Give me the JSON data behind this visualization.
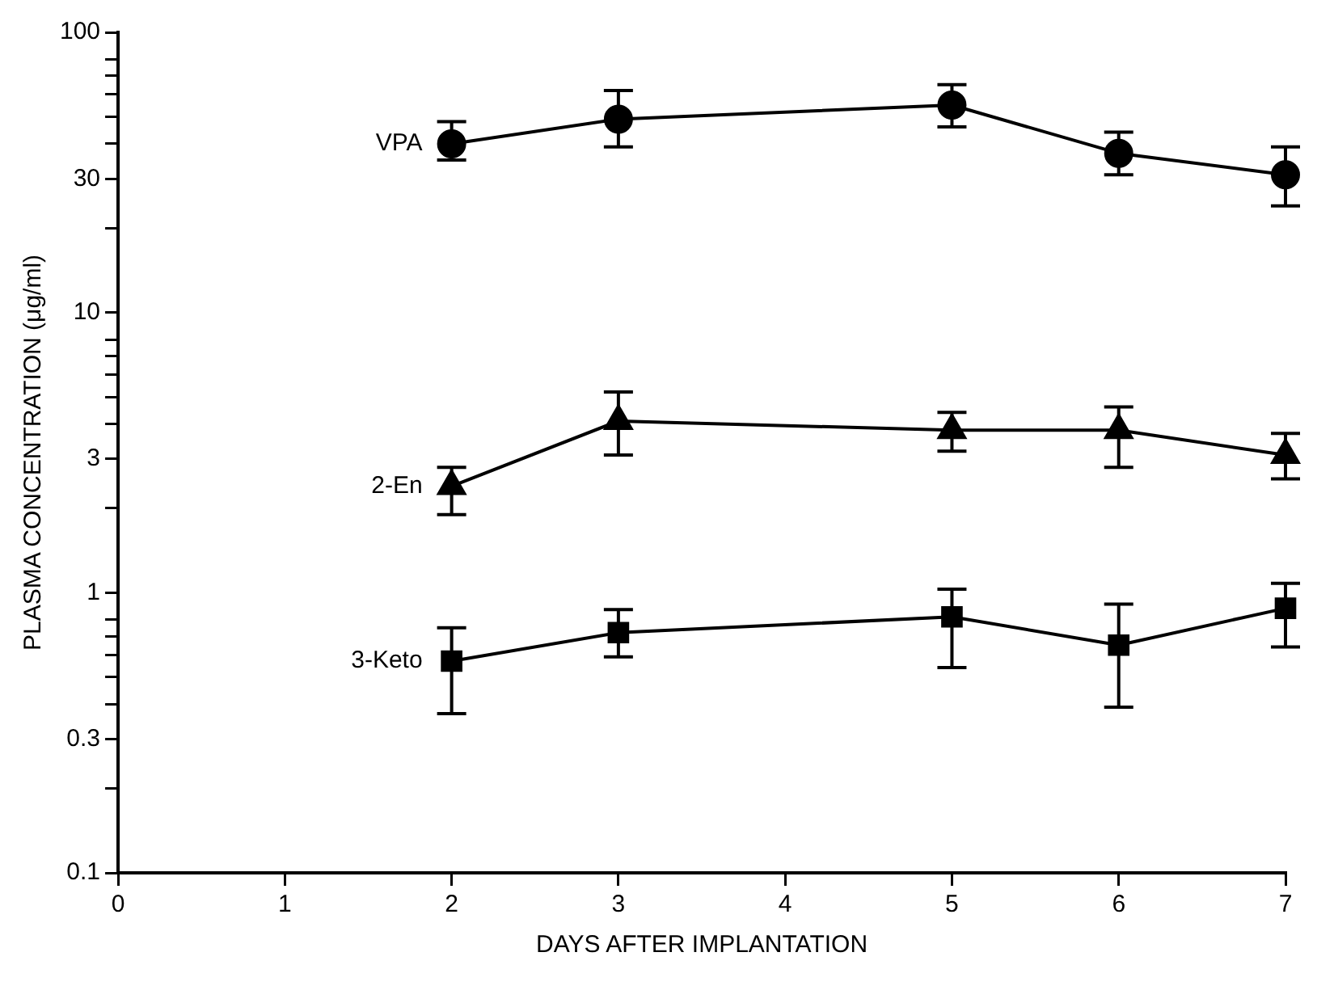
{
  "chart_data": {
    "type": "line",
    "xlabel": "DAYS AFTER IMPLANTATION",
    "ylabel": "PLASMA CONCENTRATION (μg/ml)",
    "x": [
      2,
      3,
      5,
      6,
      7
    ],
    "series": [
      {
        "name": "VPA",
        "color": "#000000",
        "marker": "circle",
        "values": [
          40,
          49,
          55,
          37,
          31
        ],
        "errors": [
          [
            35,
            48
          ],
          [
            39,
            62
          ],
          [
            46,
            65
          ],
          [
            31,
            44
          ],
          [
            24,
            39
          ]
        ]
      },
      {
        "name": "2-En",
        "color": "#000000",
        "marker": "triangle",
        "values": [
          2.4,
          4.1,
          3.8,
          3.8,
          3.1
        ],
        "errors": [
          [
            1.9,
            2.8
          ],
          [
            3.1,
            5.2
          ],
          [
            3.2,
            4.4
          ],
          [
            2.8,
            4.6
          ],
          [
            2.55,
            3.7
          ]
        ]
      },
      {
        "name": "3-Keto",
        "color": "#000000",
        "marker": "square",
        "values": [
          0.57,
          0.72,
          0.82,
          0.65,
          0.88
        ],
        "errors": [
          [
            0.37,
            0.75
          ],
          [
            0.59,
            0.87
          ],
          [
            0.54,
            1.03
          ],
          [
            0.39,
            0.91
          ],
          [
            0.64,
            1.08
          ]
        ]
      }
    ],
    "log": true,
    "grid": false,
    "legend": false,
    "line_style": "solid",
    "xlim": [
      0,
      7
    ],
    "xticks": [
      0,
      1,
      2,
      3,
      4,
      5,
      6,
      7
    ],
    "ylim": [
      0.1,
      100
    ],
    "yticks": [
      0.1,
      {
        "value": 0.2,
        "label": null
      },
      0.3,
      {
        "value": 0.4,
        "label": null
      },
      {
        "value": 0.5,
        "label": null
      },
      {
        "value": 0.6,
        "label": null
      },
      {
        "value": 0.7,
        "label": null
      },
      {
        "value": 0.8,
        "label": null
      },
      1,
      {
        "value": 2,
        "label": null
      },
      3,
      {
        "value": 4,
        "label": null
      },
      {
        "value": 5,
        "label": null
      },
      {
        "value": 6,
        "label": null
      },
      {
        "value": 7,
        "label": null
      },
      {
        "value": 8,
        "label": null
      },
      10,
      {
        "value": 20,
        "label": null
      },
      30,
      {
        "value": 40,
        "label": null
      },
      {
        "value": 50,
        "label": null
      },
      {
        "value": 60,
        "label": null
      },
      {
        "value": 70,
        "label": null
      },
      {
        "value": 80,
        "label": null
      },
      100
    ]
  }
}
